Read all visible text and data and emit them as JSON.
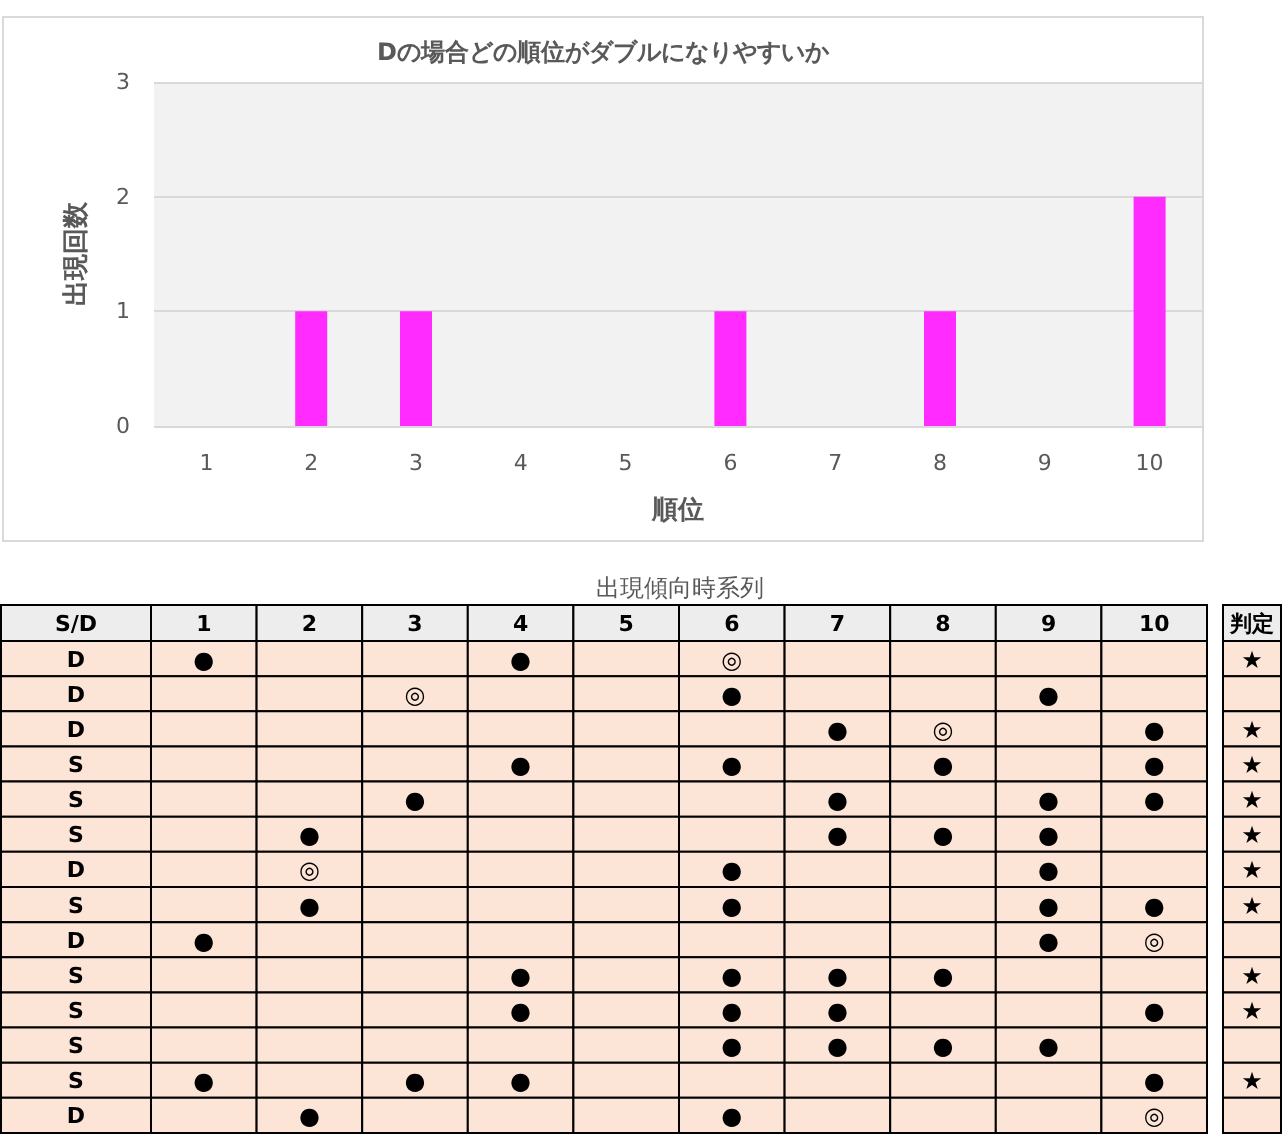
{
  "chart_data": [
    {
      "type": "bar",
      "title": "Dの場合どの順位がダブルになりやすいか",
      "categories": [
        "1",
        "2",
        "3",
        "4",
        "5",
        "6",
        "7",
        "8",
        "9",
        "10"
      ],
      "values": [
        0,
        1,
        1,
        0,
        0,
        1,
        0,
        1,
        0,
        2
      ],
      "color": "#ff2bff",
      "xlabel": "順位",
      "ylabel": "出現回数",
      "ylim": [
        0,
        3
      ],
      "yticks": [
        0,
        1,
        2,
        3
      ],
      "grid": "y"
    },
    {
      "type": "heatmap",
      "title": "出現傾向時系列",
      "ylabel": "S/D",
      "categories": [
        "1",
        "2",
        "3",
        "4",
        "5",
        "6",
        "7",
        "8",
        "9",
        "10",
        "判定"
      ],
      "y_categories": [
        "D",
        "D",
        "D",
        "S",
        "S",
        "S",
        "D",
        "S",
        "D",
        "S",
        "S",
        "S",
        "S",
        "D"
      ],
      "cells": [
        [
          null,
          null,
          null,
          null,
          null,
          null,
          null,
          null,
          null,
          null,
          null
        ],
        [
          null,
          null,
          null,
          null,
          null,
          null,
          null,
          null,
          null,
          null,
          null
        ],
        [
          null,
          null,
          null,
          null,
          null,
          null,
          null,
          null,
          null,
          null,
          null
        ],
        [
          null,
          null,
          null,
          null,
          null,
          null,
          null,
          null,
          null,
          null,
          null
        ],
        [
          null,
          null,
          null,
          null,
          null,
          null,
          null,
          null,
          null,
          null,
          null
        ],
        [
          null,
          null,
          null,
          null,
          null,
          null,
          null,
          null,
          null,
          null,
          null
        ],
        [
          null,
          null,
          null,
          null,
          null,
          null,
          null,
          null,
          null,
          null,
          null
        ],
        [
          null,
          null,
          null,
          null,
          null,
          null,
          null,
          null,
          null,
          null,
          null
        ],
        [
          null,
          null,
          null,
          null,
          null,
          null,
          null,
          null,
          null,
          null,
          null
        ],
        [
          null,
          null,
          null,
          null,
          null,
          null,
          null,
          null,
          null,
          null,
          null
        ],
        [
          null,
          null,
          null,
          null,
          null,
          null,
          null,
          null,
          null,
          null,
          null
        ],
        [
          null,
          null,
          null,
          null,
          null,
          null,
          null,
          null,
          null,
          null,
          null
        ],
        [
          null,
          null,
          null,
          null,
          null,
          null,
          null,
          null,
          null,
          null,
          null
        ],
        [
          null,
          null,
          null,
          null,
          null,
          null,
          null,
          null,
          null,
          null,
          null
        ]
      ],
      "cell_labels": [
        [
          "●",
          null,
          null,
          "●",
          null,
          "◎",
          null,
          null,
          null,
          null,
          "★"
        ],
        [
          null,
          null,
          "◎",
          null,
          null,
          "●",
          null,
          null,
          "●",
          null,
          null
        ],
        [
          null,
          null,
          null,
          null,
          null,
          null,
          "●",
          "◎",
          null,
          "●",
          "★"
        ],
        [
          null,
          null,
          null,
          "●",
          null,
          "●",
          null,
          "●",
          null,
          "●",
          "★"
        ],
        [
          null,
          null,
          "●",
          null,
          null,
          null,
          "●",
          null,
          "●",
          "●",
          "★"
        ],
        [
          null,
          "●",
          null,
          null,
          null,
          null,
          "●",
          "●",
          "●",
          null,
          "★"
        ],
        [
          null,
          "◎",
          null,
          null,
          null,
          "●",
          null,
          null,
          "●",
          null,
          "★"
        ],
        [
          null,
          "●",
          null,
          null,
          null,
          "●",
          null,
          null,
          "●",
          "●",
          "★"
        ],
        [
          "●",
          null,
          null,
          null,
          null,
          null,
          null,
          null,
          "●",
          "◎",
          null
        ],
        [
          null,
          null,
          null,
          "●",
          null,
          "●",
          "●",
          "●",
          null,
          null,
          "★"
        ],
        [
          null,
          null,
          null,
          "●",
          null,
          "●",
          "●",
          null,
          null,
          "●",
          "★"
        ],
        [
          null,
          null,
          null,
          null,
          null,
          "●",
          "●",
          "●",
          "●",
          null,
          null
        ],
        [
          "●",
          null,
          "●",
          "●",
          null,
          null,
          null,
          null,
          null,
          "●",
          "★"
        ],
        [
          null,
          "●",
          null,
          null,
          null,
          "●",
          null,
          null,
          null,
          "◎",
          null
        ]
      ],
      "color": "#fce4d6"
    }
  ]
}
